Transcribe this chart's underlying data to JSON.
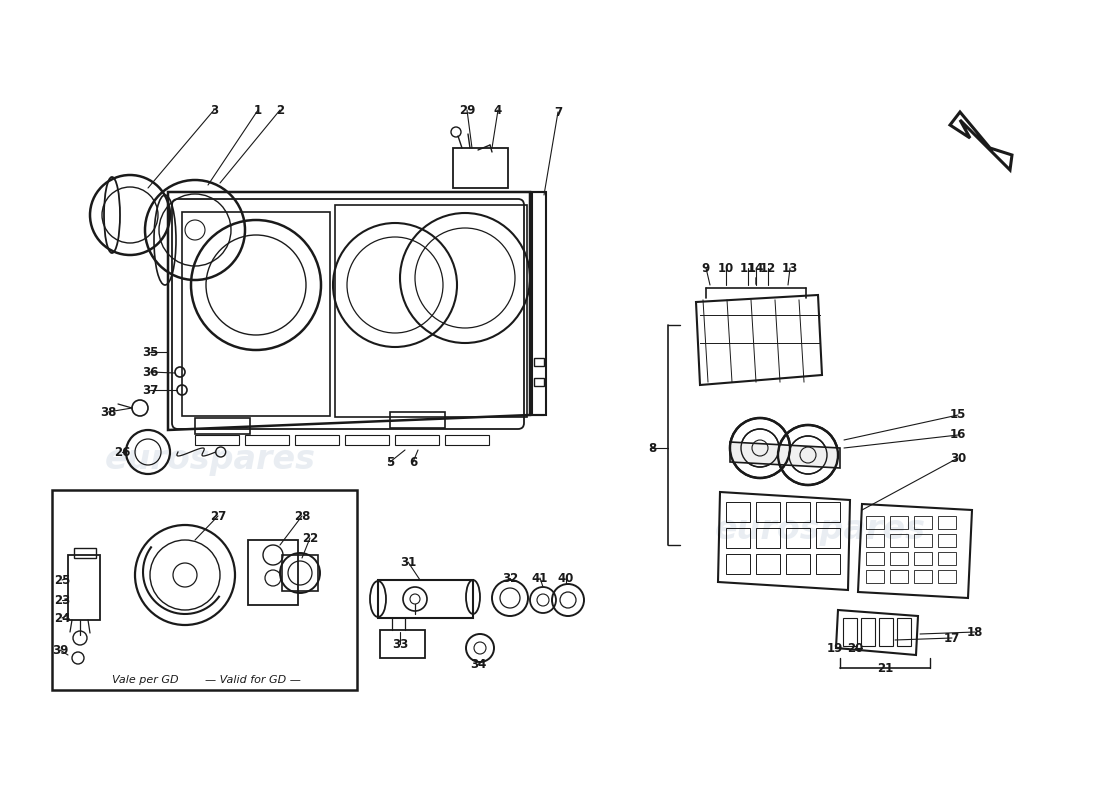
{
  "bg_color": "#ffffff",
  "lc": "#1a1a1a",
  "wm_color": "#c8d4e0",
  "wm_alpha": 0.4,
  "figsize": [
    11.0,
    8.0
  ],
  "dpi": 100,
  "note_vale": "Vale per GD",
  "note_valid": "— Valid for GD —",
  "brand": "eurospares"
}
